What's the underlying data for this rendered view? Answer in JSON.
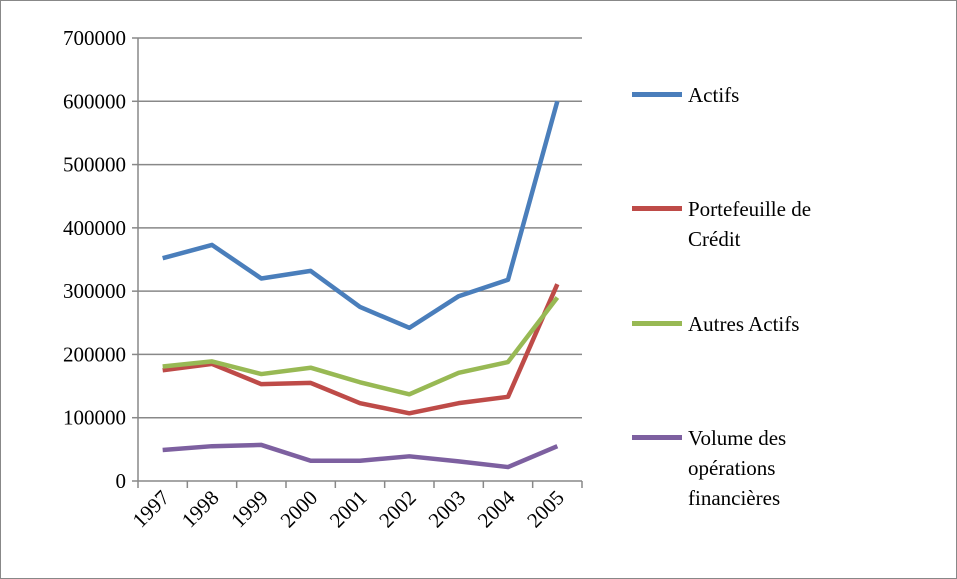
{
  "chart_data": {
    "type": "line",
    "categories": [
      "1997",
      "1998",
      "1999",
      "2000",
      "2001",
      "2002",
      "2003",
      "2004",
      "2005"
    ],
    "series": [
      {
        "name": "Actifs",
        "color": "#4a7ebb",
        "values": [
          352000,
          373000,
          320000,
          332000,
          275000,
          242000,
          292000,
          318000,
          600000
        ]
      },
      {
        "name": "Portefeuille de Crédit",
        "color": "#be4b48",
        "values": [
          175000,
          185000,
          153000,
          155000,
          123000,
          107000,
          123000,
          133000,
          311000
        ]
      },
      {
        "name": "Autres Actifs",
        "color": "#98b954",
        "values": [
          181000,
          189000,
          169000,
          179000,
          156000,
          137000,
          171000,
          188000,
          290000
        ]
      },
      {
        "name": "Volume des opérations financières",
        "color": "#7d60a0",
        "values": [
          49000,
          55000,
          57000,
          32000,
          32000,
          39000,
          31000,
          22000,
          55000
        ]
      }
    ],
    "ylim": [
      0,
      700000
    ],
    "yticks": [
      0,
      100000,
      200000,
      300000,
      400000,
      500000,
      600000,
      700000
    ],
    "grid": true
  }
}
